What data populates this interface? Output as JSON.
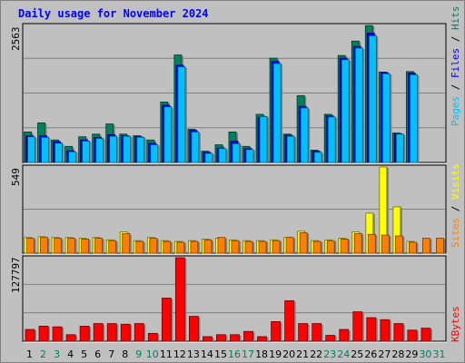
{
  "title": "Daily usage for November 2024",
  "colors": {
    "background": "#c0c0c0",
    "title": "#0000ff",
    "hits": "#00805c",
    "files": "#0000ff",
    "pages": "#00c0ff",
    "visits": "#ffff00",
    "sites": "#ff8000",
    "kbytes": "#ff0000",
    "weekday_label": "#000000",
    "weekend_label": "#00805c"
  },
  "legend": {
    "top": [
      "Pages",
      "Files",
      "Hits"
    ],
    "middle": [
      "Sites",
      "Visits"
    ],
    "bottom": [
      "KBytes"
    ],
    "separator": " / "
  },
  "chart_data": [
    {
      "type": "bar",
      "panel": "hits-files-pages",
      "ymax_label": "2563",
      "ylim": [
        0,
        2563
      ],
      "categories": [
        "1",
        "2",
        "3",
        "4",
        "5",
        "6",
        "7",
        "8",
        "9",
        "10",
        "11",
        "12",
        "13",
        "14",
        "15",
        "16",
        "17",
        "18",
        "19",
        "20",
        "21",
        "22",
        "23",
        "24",
        "25",
        "26",
        "27",
        "28",
        "29",
        "30",
        "31"
      ],
      "weekend_days": [
        "2",
        "3",
        "9",
        "10",
        "16",
        "17",
        "23",
        "24",
        "30",
        "31"
      ],
      "grid_lines": 3,
      "series": [
        {
          "name": "Hits",
          "values": [
            570,
            740,
            420,
            300,
            480,
            530,
            720,
            530,
            500,
            420,
            1130,
            2010,
            620,
            210,
            330,
            570,
            300,
            900,
            1950,
            530,
            1250,
            230,
            900,
            2000,
            2270,
            2560,
            1690,
            550,
            1700,
            0,
            0
          ]
        },
        {
          "name": "Files",
          "values": [
            500,
            500,
            390,
            220,
            420,
            470,
            520,
            500,
            480,
            360,
            1070,
            1820,
            600,
            190,
            270,
            400,
            260,
            840,
            1890,
            510,
            1050,
            210,
            870,
            1950,
            2170,
            2420,
            1680,
            540,
            1670,
            0,
            0
          ]
        },
        {
          "name": "Pages",
          "values": [
            480,
            470,
            360,
            200,
            400,
            450,
            490,
            490,
            470,
            330,
            1040,
            1790,
            570,
            170,
            260,
            350,
            240,
            860,
            1850,
            490,
            1020,
            190,
            850,
            1920,
            2140,
            2370,
            1660,
            530,
            1640,
            0,
            0
          ]
        }
      ]
    },
    {
      "type": "bar",
      "panel": "visits-sites",
      "ymax_label": "549",
      "ylim": [
        0,
        549
      ],
      "categories": [
        "1",
        "2",
        "3",
        "4",
        "5",
        "6",
        "7",
        "8",
        "9",
        "10",
        "11",
        "12",
        "13",
        "14",
        "15",
        "16",
        "17",
        "18",
        "19",
        "20",
        "21",
        "22",
        "23",
        "24",
        "25",
        "26",
        "27",
        "28",
        "29",
        "30",
        "31"
      ],
      "grid_lines": 1,
      "series": [
        {
          "name": "Visits",
          "values": [
            100,
            105,
            100,
            100,
            95,
            100,
            85,
            135,
            80,
            100,
            80,
            75,
            80,
            90,
            95,
            85,
            80,
            80,
            85,
            100,
            140,
            80,
            85,
            95,
            135,
            255,
            549,
            295,
            75,
            0,
            0
          ]
        },
        {
          "name": "Sites",
          "values": [
            95,
            100,
            95,
            95,
            90,
            95,
            80,
            125,
            75,
            95,
            75,
            70,
            75,
            85,
            100,
            80,
            75,
            75,
            80,
            100,
            130,
            75,
            80,
            90,
            125,
            120,
            115,
            110,
            70,
            95,
            95
          ]
        }
      ]
    },
    {
      "type": "bar",
      "panel": "kbytes",
      "ymax_label": "127797",
      "ylim": [
        0,
        127797
      ],
      "categories": [
        "1",
        "2",
        "3",
        "4",
        "5",
        "6",
        "7",
        "8",
        "9",
        "10",
        "11",
        "12",
        "13",
        "14",
        "15",
        "16",
        "17",
        "18",
        "19",
        "20",
        "21",
        "22",
        "23",
        "24",
        "25",
        "26",
        "27",
        "28",
        "29",
        "30",
        "31"
      ],
      "grid_lines": 2,
      "series": [
        {
          "name": "KBytes",
          "values": [
            18000,
            23000,
            22000,
            10000,
            23000,
            27000,
            27000,
            26000,
            27000,
            12000,
            66000,
            127797,
            38000,
            7000,
            10000,
            10000,
            15000,
            7000,
            30000,
            62000,
            27000,
            27000,
            9000,
            18000,
            45000,
            36000,
            33000,
            27000,
            17000,
            20000,
            0
          ]
        }
      ]
    }
  ]
}
